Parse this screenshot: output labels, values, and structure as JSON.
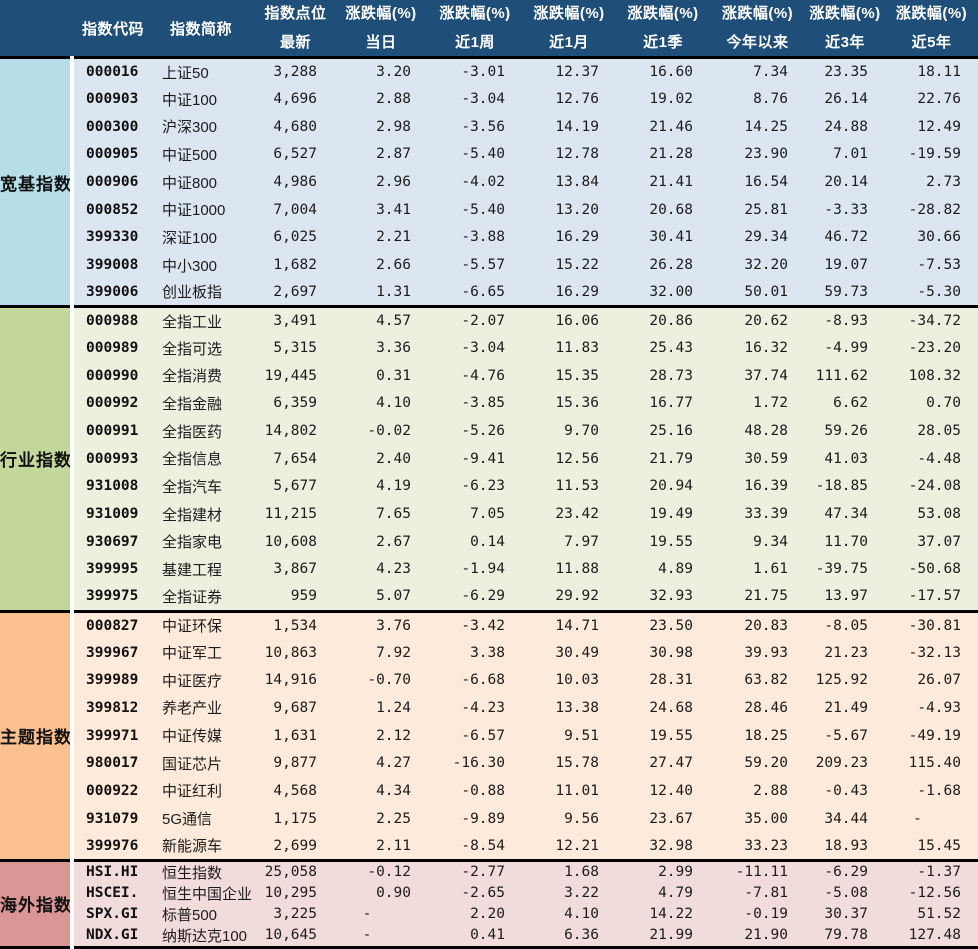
{
  "chart_data": {
    "type": "table",
    "header": {
      "code": "指数代码",
      "name": "指数简称",
      "point_top": "指数点位",
      "point_bottom": "最新",
      "change_top": "涨跌幅(%)",
      "periods": [
        "当日",
        "近1周",
        "近1月",
        "近1季",
        "今年以来",
        "近3年",
        "近5年"
      ]
    },
    "groups": [
      {
        "label": "宽基指数",
        "label_bg": "#b7dee8",
        "body_bg": "#dce6f1",
        "rows": [
          [
            "000016",
            "上证50",
            "3,288",
            "3.20",
            "-3.01",
            "12.37",
            "16.60",
            "7.34",
            "23.35",
            "18.11"
          ],
          [
            "000903",
            "中证100",
            "4,696",
            "2.88",
            "-3.04",
            "12.76",
            "19.02",
            "8.76",
            "26.14",
            "22.76"
          ],
          [
            "000300",
            "沪深300",
            "4,680",
            "2.98",
            "-3.56",
            "14.19",
            "21.46",
            "14.25",
            "24.88",
            "12.49"
          ],
          [
            "000905",
            "中证500",
            "6,527",
            "2.87",
            "-5.40",
            "12.78",
            "21.28",
            "23.90",
            "7.01",
            "-19.59"
          ],
          [
            "000906",
            "中证800",
            "4,986",
            "2.96",
            "-4.02",
            "13.84",
            "21.41",
            "16.54",
            "20.14",
            "2.73"
          ],
          [
            "000852",
            "中证1000",
            "7,004",
            "3.41",
            "-5.40",
            "13.20",
            "20.68",
            "25.81",
            "-3.33",
            "-28.82"
          ],
          [
            "399330",
            "深证100",
            "6,025",
            "2.21",
            "-3.88",
            "16.29",
            "30.41",
            "29.34",
            "46.72",
            "30.66"
          ],
          [
            "399008",
            "中小300",
            "1,682",
            "2.66",
            "-5.57",
            "15.22",
            "26.28",
            "32.20",
            "19.07",
            "-7.53"
          ],
          [
            "399006",
            "创业板指",
            "2,697",
            "1.31",
            "-6.65",
            "16.29",
            "32.00",
            "50.01",
            "59.73",
            "-5.30"
          ]
        ]
      },
      {
        "label": "行业指数",
        "label_bg": "#c3d69b",
        "body_bg": "#ebf1de",
        "rows": [
          [
            "000988",
            "全指工业",
            "3,491",
            "4.57",
            "-2.07",
            "16.06",
            "20.86",
            "20.62",
            "-8.93",
            "-34.72"
          ],
          [
            "000989",
            "全指可选",
            "5,315",
            "3.36",
            "-3.04",
            "11.83",
            "25.43",
            "16.32",
            "-4.99",
            "-23.20"
          ],
          [
            "000990",
            "全指消费",
            "19,445",
            "0.31",
            "-4.76",
            "15.35",
            "28.73",
            "37.74",
            "111.62",
            "108.32"
          ],
          [
            "000992",
            "全指金融",
            "6,359",
            "4.10",
            "-3.85",
            "15.36",
            "16.77",
            "1.72",
            "6.62",
            "0.70"
          ],
          [
            "000991",
            "全指医药",
            "14,802",
            "-0.02",
            "-5.26",
            "9.70",
            "25.16",
            "48.28",
            "59.26",
            "28.05"
          ],
          [
            "000993",
            "全指信息",
            "7,654",
            "2.40",
            "-9.41",
            "12.56",
            "21.79",
            "30.59",
            "41.03",
            "-4.48"
          ],
          [
            "931008",
            "全指汽车",
            "5,677",
            "4.19",
            "-6.23",
            "11.53",
            "20.94",
            "16.39",
            "-18.85",
            "-24.08"
          ],
          [
            "931009",
            "全指建材",
            "11,215",
            "7.65",
            "7.05",
            "23.42",
            "19.49",
            "33.39",
            "47.34",
            "53.08"
          ],
          [
            "930697",
            "全指家电",
            "10,608",
            "2.67",
            "0.14",
            "7.97",
            "19.55",
            "9.34",
            "11.70",
            "37.07"
          ],
          [
            "399995",
            "基建工程",
            "3,867",
            "4.23",
            "-1.94",
            "11.88",
            "4.89",
            "1.61",
            "-39.75",
            "-50.68"
          ],
          [
            "399975",
            "全指证券",
            "959",
            "5.07",
            "-6.29",
            "29.92",
            "32.93",
            "21.75",
            "13.97",
            "-17.57"
          ]
        ]
      },
      {
        "label": "主题指数",
        "label_bg": "#fac08f",
        "body_bg": "#fdeada",
        "rows": [
          [
            "000827",
            "中证环保",
            "1,534",
            "3.76",
            "-3.42",
            "14.71",
            "23.50",
            "20.83",
            "-8.05",
            "-30.81"
          ],
          [
            "399967",
            "中证军工",
            "10,863",
            "7.92",
            "3.38",
            "30.49",
            "30.98",
            "39.93",
            "21.23",
            "-32.13"
          ],
          [
            "399989",
            "中证医疗",
            "14,916",
            "-0.70",
            "-6.68",
            "10.03",
            "28.31",
            "63.82",
            "125.92",
            "26.07"
          ],
          [
            "399812",
            "养老产业",
            "9,687",
            "1.24",
            "-4.23",
            "13.38",
            "24.68",
            "28.46",
            "21.49",
            "-4.93"
          ],
          [
            "399971",
            "中证传媒",
            "1,631",
            "2.12",
            "-6.57",
            "9.51",
            "19.55",
            "18.25",
            "-5.67",
            "-49.19"
          ],
          [
            "980017",
            "国证芯片",
            "9,877",
            "4.27",
            "-16.30",
            "15.78",
            "27.47",
            "59.20",
            "209.23",
            "115.40"
          ],
          [
            "000922",
            "中证红利",
            "4,568",
            "4.34",
            "-0.88",
            "11.01",
            "12.40",
            "2.88",
            "-0.43",
            "-1.68"
          ],
          [
            "931079",
            "5G通信",
            "1,175",
            "2.25",
            "-9.89",
            "9.56",
            "23.67",
            "35.00",
            "34.44",
            "-"
          ],
          [
            "399976",
            "新能源车",
            "2,699",
            "2.11",
            "-8.54",
            "12.21",
            "32.98",
            "33.23",
            "18.93",
            "15.45"
          ]
        ]
      },
      {
        "label": "海外指数",
        "label_bg": "#d99694",
        "body_bg": "#f2dcdb",
        "compact": true,
        "rows": [
          [
            "HSI.HI",
            "恒生指数",
            "25,058",
            "-0.12",
            "-2.77",
            "1.68",
            "2.99",
            "-11.11",
            "-6.29",
            "-1.37"
          ],
          [
            "HSCEI.",
            "恒生中国企业",
            "10,295",
            "0.90",
            "-2.65",
            "3.22",
            "4.79",
            "-7.81",
            "-5.08",
            "-12.56"
          ],
          [
            "SPX.GI",
            "标普500",
            "3,225",
            "-",
            "2.20",
            "4.10",
            "14.22",
            "-0.19",
            "30.37",
            "51.52"
          ],
          [
            "NDX.GI",
            "纳斯达克100",
            "10,645",
            "-",
            "0.41",
            "6.36",
            "21.99",
            "21.90",
            "79.78",
            "127.48"
          ]
        ]
      }
    ]
  },
  "colors": {
    "header_bg": "#1f4e79",
    "header_text": "#ffffff",
    "body_text": "#1c1c1c",
    "divider": "#000000"
  }
}
